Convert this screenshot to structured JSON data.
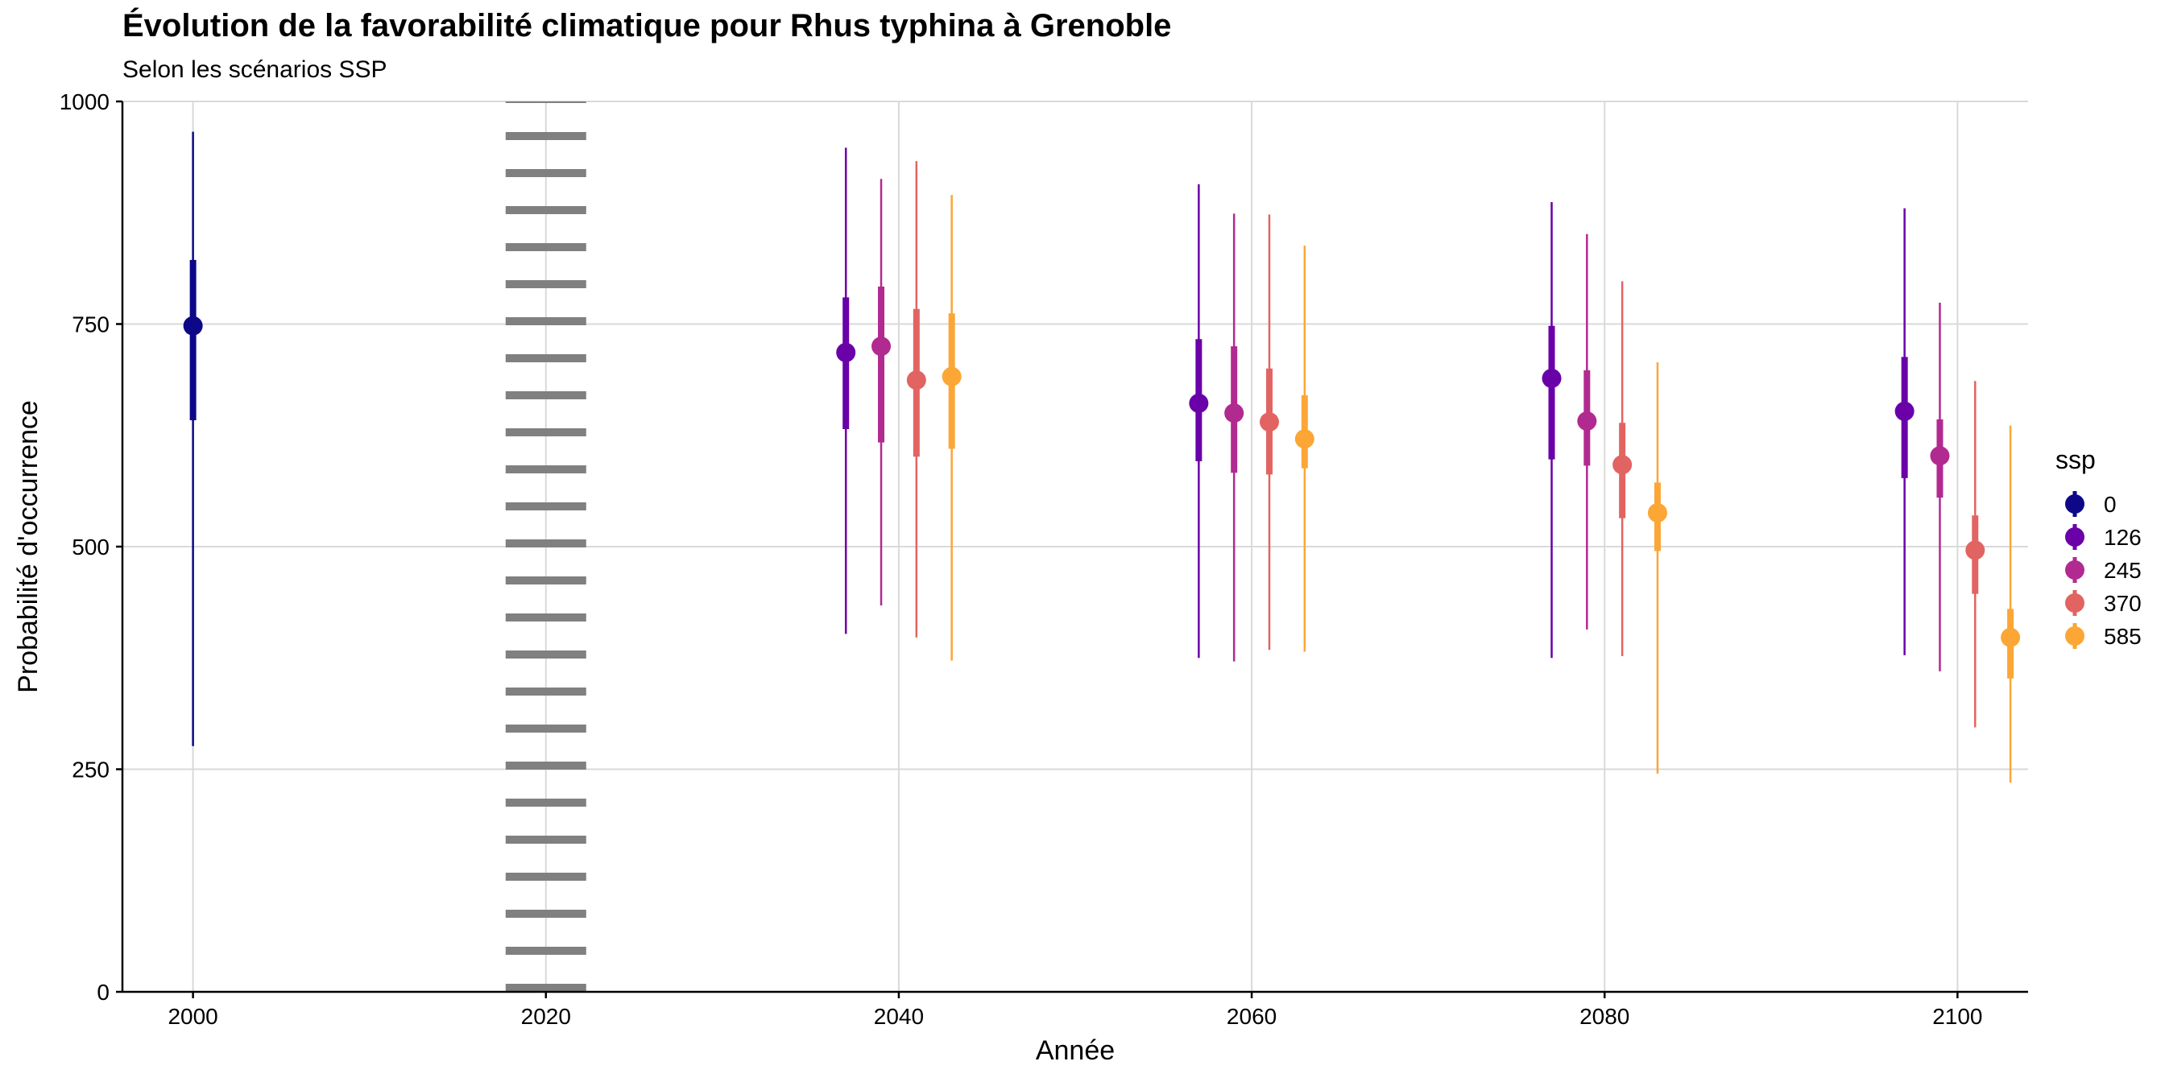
{
  "chart_data": {
    "type": "scatter",
    "title": "Évolution de la favorabilité climatique pour Rhus typhina à Grenoble",
    "subtitle": "Selon les scénarios SSP",
    "xlabel": "Année",
    "ylabel": "Probabilité d'occurrence",
    "xlim": [
      1996,
      2104
    ],
    "ylim": [
      0,
      1000
    ],
    "x_ticks": [
      2000,
      2020,
      2040,
      2060,
      2080,
      2100
    ],
    "y_ticks": [
      0,
      250,
      500,
      750,
      1000
    ],
    "grid": true,
    "reference_line": {
      "x": 2020,
      "style": "dotted",
      "color": "#808080"
    },
    "legend": {
      "title": "ssp",
      "position": "right"
    },
    "series": [
      {
        "name": "0",
        "color": "#0D0887",
        "points": [
          {
            "x": 2000,
            "y": 748,
            "inner": [
              642,
              822
            ],
            "outer": [
              276,
              966
            ]
          }
        ]
      },
      {
        "name": "126",
        "color": "#6A00A8",
        "points": [
          {
            "x": 2037,
            "y": 718,
            "inner": [
              632,
              780
            ],
            "outer": [
              402,
              948
            ]
          },
          {
            "x": 2057,
            "y": 661,
            "inner": [
              596,
              733
            ],
            "outer": [
              375,
              907
            ]
          },
          {
            "x": 2077,
            "y": 689,
            "inner": [
              598,
              748
            ],
            "outer": [
              375,
              887
            ]
          },
          {
            "x": 2097,
            "y": 652,
            "inner": [
              577,
              713
            ],
            "outer": [
              378,
              880
            ]
          }
        ]
      },
      {
        "name": "245",
        "color": "#B12A90",
        "points": [
          {
            "x": 2039,
            "y": 725,
            "inner": [
              617,
              792
            ],
            "outer": [
              434,
              913
            ]
          },
          {
            "x": 2059,
            "y": 650,
            "inner": [
              583,
              725
            ],
            "outer": [
              371,
              874
            ]
          },
          {
            "x": 2079,
            "y": 641,
            "inner": [
              591,
              698
            ],
            "outer": [
              407,
              851
            ]
          },
          {
            "x": 2099,
            "y": 602,
            "inner": [
              555,
              643
            ],
            "outer": [
              360,
              774
            ]
          }
        ]
      },
      {
        "name": "370",
        "color": "#E16462",
        "points": [
          {
            "x": 2041,
            "y": 687,
            "inner": [
              601,
              767
            ],
            "outer": [
              398,
              933
            ]
          },
          {
            "x": 2061,
            "y": 640,
            "inner": [
              581,
              700
            ],
            "outer": [
              384,
              873
            ]
          },
          {
            "x": 2081,
            "y": 592,
            "inner": [
              532,
              639
            ],
            "outer": [
              377,
              798
            ]
          },
          {
            "x": 2101,
            "y": 496,
            "inner": [
              447,
              535
            ],
            "outer": [
              297,
              686
            ]
          }
        ]
      },
      {
        "name": "585",
        "color": "#FCA636",
        "points": [
          {
            "x": 2043,
            "y": 691,
            "inner": [
              610,
              762
            ],
            "outer": [
              372,
              895
            ]
          },
          {
            "x": 2063,
            "y": 621,
            "inner": [
              588,
              670
            ],
            "outer": [
              382,
              838
            ]
          },
          {
            "x": 2083,
            "y": 538,
            "inner": [
              495,
              572
            ],
            "outer": [
              245,
              707
            ]
          },
          {
            "x": 2103,
            "y": 398,
            "inner": [
              352,
              430
            ],
            "outer": [
              235,
              636
            ]
          }
        ]
      }
    ]
  }
}
